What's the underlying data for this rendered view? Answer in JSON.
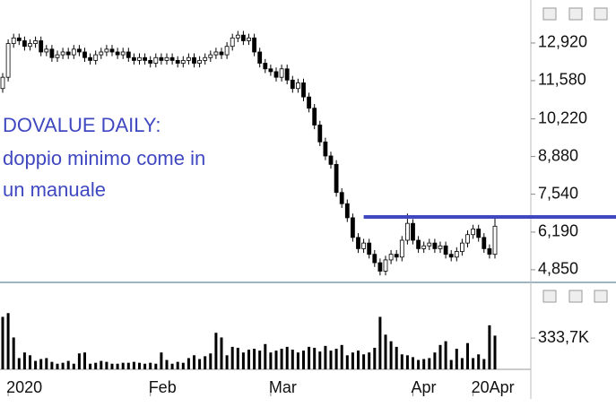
{
  "chart_data": [
    {
      "type": "candlestick",
      "annotations": [
        "DOVALUE DAILY:",
        "doppio minimo come in",
        "un manuale"
      ],
      "annotation_color": "#3f48c0",
      "level_line": 6.73,
      "categories": [
        null,
        "2020",
        null,
        null,
        null,
        null,
        null,
        null,
        null,
        null,
        null,
        null,
        null,
        null,
        null,
        null,
        null,
        null,
        null,
        null,
        null,
        null,
        null,
        null,
        null,
        null,
        null,
        "Feb",
        null,
        null,
        null,
        null,
        null,
        null,
        null,
        null,
        null,
        null,
        null,
        null,
        null,
        null,
        null,
        null,
        null,
        null,
        null,
        null,
        null,
        "Mar",
        null,
        null,
        null,
        null,
        null,
        null,
        null,
        null,
        null,
        null,
        null,
        null,
        null,
        null,
        null,
        null,
        null,
        null,
        null,
        null,
        null,
        null,
        null,
        null,
        null,
        "Apr",
        null,
        null,
        null,
        null,
        null,
        null,
        null,
        null,
        null,
        null,
        "20Apr",
        null,
        null,
        null,
        null
      ],
      "open": [
        11.3,
        11.7,
        12.9,
        13.1,
        13.0,
        12.8,
        12.9,
        13.0,
        12.6,
        12.7,
        12.4,
        12.5,
        12.6,
        12.5,
        12.7,
        12.6,
        12.4,
        12.3,
        12.5,
        12.6,
        12.7,
        12.6,
        12.5,
        12.6,
        12.4,
        12.3,
        12.4,
        12.3,
        12.2,
        12.4,
        12.3,
        12.4,
        12.3,
        12.2,
        12.3,
        12.4,
        12.2,
        12.3,
        12.4,
        12.5,
        12.6,
        12.5,
        12.8,
        13.1,
        13.2,
        13.0,
        13.1,
        12.6,
        12.2,
        12.0,
        11.9,
        11.7,
        12.0,
        11.6,
        11.3,
        11.5,
        11.0,
        10.6,
        10.0,
        9.4,
        8.9,
        8.6,
        7.6,
        7.2,
        6.7,
        6.0,
        5.6,
        5.8,
        5.4,
        5.1,
        4.8,
        5.2,
        5.4,
        5.3,
        5.9,
        6.5,
        5.9,
        5.6,
        5.7,
        5.8,
        5.6,
        5.7,
        5.4,
        5.3,
        5.5,
        5.8,
        6.1,
        6.3,
        6.0,
        5.6,
        5.4
      ],
      "high": [
        11.85,
        13.05,
        13.25,
        13.25,
        13.15,
        13.05,
        13.15,
        13.15,
        12.85,
        12.85,
        12.65,
        12.75,
        12.75,
        12.85,
        12.85,
        12.75,
        12.55,
        12.65,
        12.75,
        12.85,
        12.85,
        12.75,
        12.75,
        12.75,
        12.55,
        12.55,
        12.55,
        12.45,
        12.55,
        12.55,
        12.55,
        12.55,
        12.45,
        12.45,
        12.55,
        12.55,
        12.45,
        12.55,
        12.65,
        12.75,
        12.75,
        12.95,
        13.25,
        13.35,
        13.35,
        13.25,
        13.25,
        12.75,
        12.35,
        12.15,
        12.05,
        12.15,
        12.15,
        11.75,
        11.65,
        11.65,
        11.15,
        10.75,
        10.15,
        9.55,
        9.05,
        8.75,
        7.75,
        7.35,
        6.85,
        6.15,
        5.95,
        5.95,
        5.55,
        5.25,
        5.35,
        5.55,
        5.55,
        6.05,
        6.85,
        6.65,
        6.05,
        5.85,
        5.95,
        5.95,
        5.85,
        5.85,
        5.55,
        5.65,
        5.95,
        6.25,
        6.45,
        6.45,
        6.15,
        5.75,
        6.75
      ],
      "low": [
        11.15,
        11.55,
        12.75,
        12.85,
        12.65,
        12.65,
        12.75,
        12.45,
        12.45,
        12.25,
        12.25,
        12.35,
        12.35,
        12.35,
        12.45,
        12.25,
        12.15,
        12.15,
        12.35,
        12.45,
        12.45,
        12.35,
        12.35,
        12.25,
        12.15,
        12.15,
        12.15,
        12.05,
        12.05,
        12.15,
        12.15,
        12.15,
        12.05,
        12.05,
        12.15,
        12.05,
        12.05,
        12.15,
        12.25,
        12.35,
        12.35,
        12.35,
        12.65,
        12.95,
        12.85,
        12.85,
        12.45,
        12.05,
        11.85,
        11.75,
        11.55,
        11.55,
        11.45,
        11.15,
        11.15,
        10.85,
        10.45,
        9.85,
        9.25,
        8.75,
        8.45,
        7.45,
        7.05,
        6.55,
        5.85,
        5.45,
        5.45,
        5.25,
        4.95,
        4.65,
        4.65,
        5.05,
        5.15,
        5.15,
        5.75,
        5.75,
        5.45,
        5.45,
        5.55,
        5.45,
        5.45,
        5.25,
        5.15,
        5.15,
        5.35,
        5.65,
        5.95,
        5.85,
        5.45,
        5.25,
        5.25
      ],
      "close": [
        11.7,
        12.9,
        13.1,
        13.0,
        12.8,
        12.9,
        13.0,
        12.6,
        12.7,
        12.4,
        12.5,
        12.6,
        12.5,
        12.7,
        12.6,
        12.4,
        12.3,
        12.5,
        12.6,
        12.7,
        12.6,
        12.5,
        12.6,
        12.4,
        12.3,
        12.4,
        12.3,
        12.2,
        12.4,
        12.3,
        12.4,
        12.3,
        12.2,
        12.3,
        12.4,
        12.2,
        12.3,
        12.4,
        12.5,
        12.6,
        12.5,
        12.8,
        13.1,
        13.2,
        13.0,
        13.1,
        12.6,
        12.2,
        12.0,
        11.9,
        11.7,
        12.0,
        11.6,
        11.3,
        11.5,
        11.0,
        10.6,
        10.0,
        9.4,
        8.9,
        8.6,
        7.6,
        7.2,
        6.7,
        6.0,
        5.6,
        5.8,
        5.4,
        5.1,
        4.8,
        5.2,
        5.4,
        5.3,
        5.9,
        6.5,
        5.9,
        5.6,
        5.7,
        5.8,
        5.6,
        5.7,
        5.4,
        5.3,
        5.5,
        5.8,
        6.1,
        6.3,
        6.0,
        5.6,
        5.4,
        6.4
      ],
      "ylim": [
        4.4,
        14.45
      ],
      "yticks": [
        {
          "value": 12.92,
          "label": "12,920"
        },
        {
          "value": 11.58,
          "label": "11,580"
        },
        {
          "value": 10.22,
          "label": "10,220"
        },
        {
          "value": 8.88,
          "label": "8,880"
        },
        {
          "value": 7.54,
          "label": "7,540"
        },
        {
          "value": 6.19,
          "label": "6,190"
        },
        {
          "value": 4.85,
          "label": "4,850"
        }
      ]
    },
    {
      "type": "bar",
      "color": "#000000",
      "values": [
        560,
        600,
        340,
        120,
        180,
        150,
        90,
        110,
        120,
        80,
        60,
        70,
        90,
        60,
        170,
        180,
        60,
        70,
        90,
        80,
        60,
        60,
        70,
        70,
        80,
        70,
        60,
        70,
        60,
        180,
        100,
        60,
        80,
        70,
        120,
        150,
        110,
        140,
        170,
        390,
        340,
        150,
        240,
        230,
        180,
        210,
        220,
        200,
        270,
        180,
        200,
        220,
        240,
        210,
        180,
        200,
        240,
        230,
        190,
        250,
        200,
        220,
        260,
        150,
        180,
        200,
        160,
        180,
        230,
        560,
        370,
        300,
        240,
        160,
        150,
        130,
        100,
        110,
        120,
        180,
        260,
        300,
        100,
        220,
        120,
        280,
        120,
        160,
        110,
        470,
        360
      ],
      "ylim": [
        0,
        880
      ],
      "yticks": [
        {
          "value": 333.7,
          "label": "333,7K"
        }
      ]
    }
  ]
}
